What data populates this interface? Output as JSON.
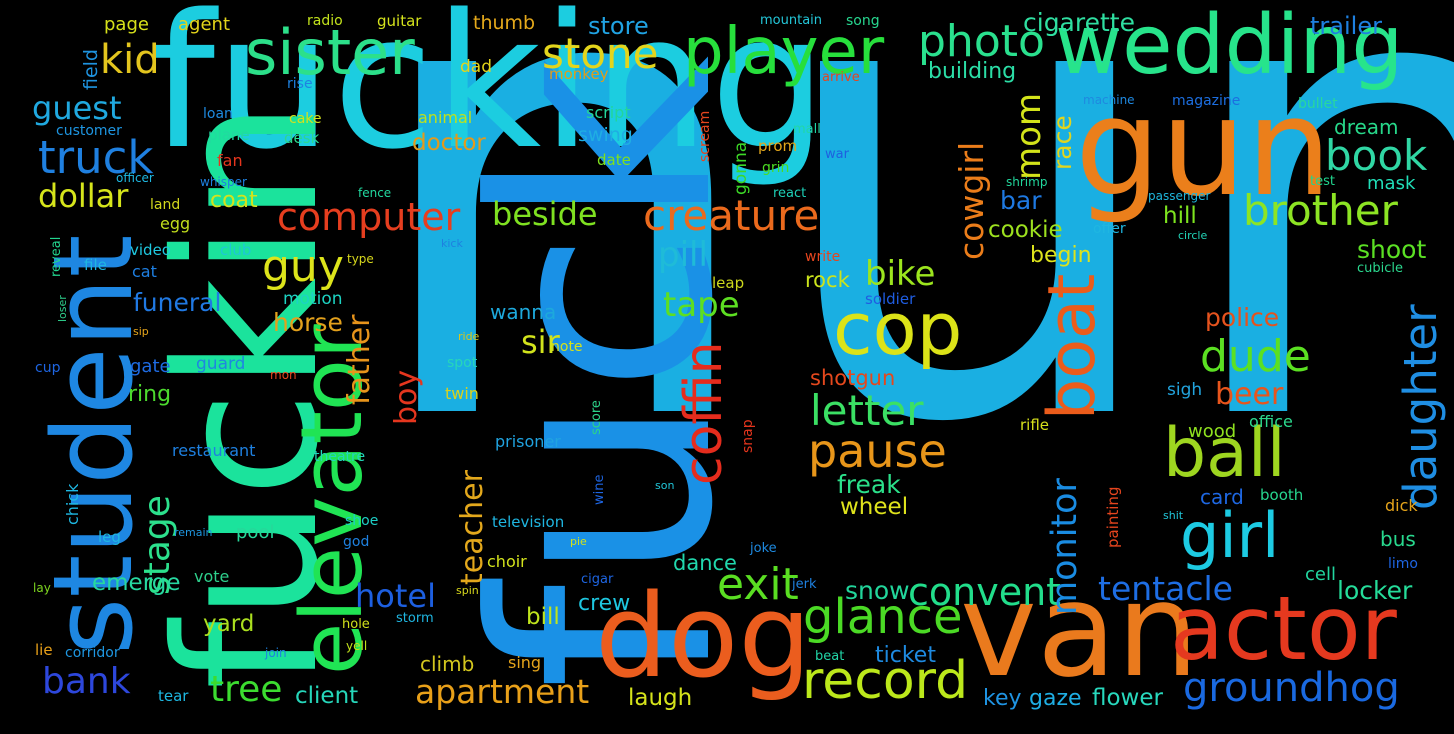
{
  "background": "#000000",
  "words": [
    {
      "text": "nun",
      "color": "#1AAFE2"
    },
    {
      "text": "fucking",
      "color": "#1CCDE0"
    },
    {
      "text": "fuck",
      "color": "#1A91E6"
    },
    {
      "text": "fuckin",
      "color": "#1BE39C"
    },
    {
      "text": "van",
      "color": "#EA7A1D"
    },
    {
      "text": "dog",
      "color": "#EB5D1E"
    },
    {
      "text": "gun",
      "color": "#EB7F1B"
    },
    {
      "text": "wedding",
      "color": "#27E48B"
    },
    {
      "text": "actor",
      "color": "#E5391F"
    },
    {
      "text": "student",
      "color": "#1E87E2"
    },
    {
      "text": "elevator",
      "color": "#20E454"
    },
    {
      "text": "sister",
      "color": "#2CE08A"
    },
    {
      "text": "player",
      "color": "#27DF3C"
    },
    {
      "text": "cop",
      "color": "#DCE318"
    },
    {
      "text": "record",
      "color": "#BCE81B"
    },
    {
      "text": "boat",
      "color": "#EB5C1B"
    },
    {
      "text": "coffin",
      "color": "#E52C1D"
    },
    {
      "text": "ball",
      "color": "#9ED620"
    },
    {
      "text": "girl",
      "color": "#1DCBE3"
    },
    {
      "text": "creature",
      "color": "#EB6A1D"
    },
    {
      "text": "computer",
      "color": "#E63E1F"
    },
    {
      "text": "photo",
      "color": "#2AE08E"
    },
    {
      "text": "brother",
      "color": "#8DE424"
    },
    {
      "text": "glance",
      "color": "#4BDA25"
    },
    {
      "text": "pause",
      "color": "#E8961A"
    },
    {
      "text": "letter",
      "color": "#3BE064"
    },
    {
      "text": "groundhog",
      "color": "#1A69E0"
    },
    {
      "text": "convent",
      "color": "#22DD8B"
    },
    {
      "text": "book",
      "color": "#30D7A4"
    },
    {
      "text": "exit",
      "color": "#5ADE22"
    },
    {
      "text": "dude",
      "color": "#5BE022"
    },
    {
      "text": "daughter",
      "color": "#1F8EE3"
    },
    {
      "text": "monitor",
      "color": "#1A8CE2"
    },
    {
      "text": "tentacle",
      "color": "#1E6EE4"
    },
    {
      "text": "truck",
      "color": "#1F80E0"
    },
    {
      "text": "apartment",
      "color": "#E8A019"
    },
    {
      "text": "tree",
      "color": "#3CDC30"
    },
    {
      "text": "guy",
      "color": "#DDE41B"
    },
    {
      "text": "stone",
      "color": "#E3D51C"
    },
    {
      "text": "hotel",
      "color": "#1D5FE0"
    },
    {
      "text": "bank",
      "color": "#2D47DC"
    },
    {
      "text": "kid",
      "color": "#E3C51E"
    },
    {
      "text": "stage",
      "color": "#2CE08C"
    },
    {
      "text": "mom",
      "color": "#D3E31A"
    },
    {
      "text": "dollar",
      "color": "#D6E51B"
    },
    {
      "text": "guest",
      "color": "#20A9E0"
    },
    {
      "text": "cowgirl",
      "color": "#EB7D1A"
    },
    {
      "text": "bike",
      "color": "#9CE51E"
    },
    {
      "text": "beside",
      "color": "#7FE121"
    },
    {
      "text": "pill",
      "color": "#1FBBD8"
    },
    {
      "text": "tape",
      "color": "#5DDF22"
    },
    {
      "text": "boy",
      "color": "#E5361E"
    },
    {
      "text": "father",
      "color": "#E8941B"
    },
    {
      "text": "teacher",
      "color": "#E3A81C"
    },
    {
      "text": "sir",
      "color": "#D2E31C"
    },
    {
      "text": "beer",
      "color": "#E8551C"
    },
    {
      "text": "locker",
      "color": "#25DC9A"
    },
    {
      "text": "freak",
      "color": "#2BE08A"
    },
    {
      "text": "funeral",
      "color": "#2079E3"
    },
    {
      "text": "horse",
      "color": "#E3A11C"
    },
    {
      "text": "race",
      "color": "#E2D51C"
    },
    {
      "text": "bar",
      "color": "#1E79E2"
    },
    {
      "text": "shoot",
      "color": "#5BE024"
    },
    {
      "text": "police",
      "color": "#E5531E"
    },
    {
      "text": "snow",
      "color": "#22D59B"
    },
    {
      "text": "cigarette",
      "color": "#2FDFA1"
    },
    {
      "text": "wheel",
      "color": "#DFE31C"
    },
    {
      "text": "emerge",
      "color": "#27D8A0"
    },
    {
      "text": "client",
      "color": "#26D6BA"
    },
    {
      "text": "dance",
      "color": "#21D8AE"
    },
    {
      "text": "bill",
      "color": "#BFE41D"
    },
    {
      "text": "yard",
      "color": "#ABDF1F"
    },
    {
      "text": "cookie",
      "color": "#9DE11F"
    },
    {
      "text": "hill",
      "color": "#7EE51F"
    },
    {
      "text": "ticket",
      "color": "#1E8AE0"
    },
    {
      "text": "crew",
      "color": "#1EC7E0"
    },
    {
      "text": "laugh",
      "color": "#D5E31B"
    },
    {
      "text": "flower",
      "color": "#28D9BE"
    },
    {
      "text": "gaze",
      "color": "#1FAEE3"
    },
    {
      "text": "key",
      "color": "#1F94E3"
    },
    {
      "text": "doctor",
      "color": "#E39A1C"
    },
    {
      "text": "building",
      "color": "#2BDDA6"
    },
    {
      "text": "store",
      "color": "#20A3E3"
    },
    {
      "text": "trailer",
      "color": "#1E80E0"
    },
    {
      "text": "coat",
      "color": "#D2E31C"
    },
    {
      "text": "shotgun",
      "color": "#E5481D"
    },
    {
      "text": "climb",
      "color": "#D3C61E"
    },
    {
      "text": "wanna",
      "color": "#1DA9DC"
    },
    {
      "text": "begin",
      "color": "#DDE31C"
    },
    {
      "text": "rock",
      "color": "#CBE31C"
    },
    {
      "text": "card",
      "color": "#1E67E2"
    },
    {
      "text": "bus",
      "color": "#28D98E"
    },
    {
      "text": "ring",
      "color": "#4CDA2E"
    },
    {
      "text": "pool",
      "color": "#26D89A"
    },
    {
      "text": "motion",
      "color": "#1DD3C2"
    },
    {
      "text": "cell",
      "color": "#22D6A0"
    },
    {
      "text": "mask",
      "color": "#21DEB8"
    },
    {
      "text": "dream",
      "color": "#27D88A"
    },
    {
      "text": "swing",
      "color": "#1FAEE3"
    },
    {
      "text": "wood",
      "color": "#8FE11F"
    },
    {
      "text": "sigh",
      "color": "#22A4DE"
    },
    {
      "text": "gate",
      "color": "#1E6BE2"
    },
    {
      "text": "guard",
      "color": "#1F86E0"
    },
    {
      "text": "field",
      "color": "#1E93DF"
    },
    {
      "text": "page",
      "color": "#D6E11A"
    },
    {
      "text": "agent",
      "color": "#E4D51A"
    },
    {
      "text": "thumb",
      "color": "#E5A91B"
    },
    {
      "text": "dad",
      "color": "#E3D31A"
    },
    {
      "text": "monkey",
      "color": "#DF9E1B"
    },
    {
      "text": "script",
      "color": "#22D59B"
    },
    {
      "text": "animal",
      "color": "#BFE11B"
    },
    {
      "text": "date",
      "color": "#7FE11E"
    },
    {
      "text": "gonna",
      "color": "#3CD827"
    },
    {
      "text": "scream",
      "color": "#E5451E"
    },
    {
      "text": "prom",
      "color": "#E3A71B"
    },
    {
      "text": "grin",
      "color": "#4BDB22"
    },
    {
      "text": "egg",
      "color": "#C2DF1C"
    },
    {
      "text": "cat",
      "color": "#1E7FE2"
    },
    {
      "text": "club",
      "color": "#1EC7D6"
    },
    {
      "text": "land",
      "color": "#D2D81C"
    },
    {
      "text": "video",
      "color": "#1FC9E0"
    },
    {
      "text": "file",
      "color": "#1FB6E1"
    },
    {
      "text": "fan",
      "color": "#E5351D"
    },
    {
      "text": "desk",
      "color": "#2CD98E"
    },
    {
      "text": "cake",
      "color": "#D3E11C"
    },
    {
      "text": "loan",
      "color": "#1E8AE0"
    },
    {
      "text": "plane",
      "color": "#22D9A0"
    },
    {
      "text": "customer",
      "color": "#1E96E2"
    },
    {
      "text": "rise",
      "color": "#1F82E2"
    },
    {
      "text": "radio",
      "color": "#C2E21C"
    },
    {
      "text": "guitar",
      "color": "#D5E31C"
    },
    {
      "text": "mountain",
      "color": "#24C7D9"
    },
    {
      "text": "song",
      "color": "#27D68F"
    },
    {
      "text": "machine",
      "color": "#1F89E0"
    },
    {
      "text": "magazine",
      "color": "#1C6EE0"
    },
    {
      "text": "bullet",
      "color": "#28D79E"
    },
    {
      "text": "arrive",
      "color": "#E5451E"
    },
    {
      "text": "mall",
      "color": "#22D6A8"
    },
    {
      "text": "war",
      "color": "#1E60E0"
    },
    {
      "text": "react",
      "color": "#1DCFB6"
    },
    {
      "text": "shrimp",
      "color": "#21D69C"
    },
    {
      "text": "passenger",
      "color": "#1EB6DC"
    },
    {
      "text": "test",
      "color": "#21D58E"
    },
    {
      "text": "circle",
      "color": "#22D5B8"
    },
    {
      "text": "offer",
      "color": "#1FB6E1"
    },
    {
      "text": "cubicle",
      "color": "#2BD78E"
    },
    {
      "text": "officer",
      "color": "#1EB8E2"
    },
    {
      "text": "whisper",
      "color": "#1E81E0"
    },
    {
      "text": "fence",
      "color": "#22D9A0"
    },
    {
      "text": "kick",
      "color": "#1E80E0"
    },
    {
      "text": "reveal",
      "color": "#22D58E"
    },
    {
      "text": "loser",
      "color": "#2ECF8C"
    },
    {
      "text": "sip",
      "color": "#E5A41B"
    },
    {
      "text": "cup",
      "color": "#1E65E2"
    },
    {
      "text": "type",
      "color": "#D6D71C"
    },
    {
      "text": "write",
      "color": "#E5451E"
    },
    {
      "text": "leap",
      "color": "#CDD91C"
    },
    {
      "text": "soldier",
      "color": "#1F5DE2"
    },
    {
      "text": "ride",
      "color": "#D9C71B"
    },
    {
      "text": "note",
      "color": "#D4E11C"
    },
    {
      "text": "spot",
      "color": "#26D6BA"
    },
    {
      "text": "twin",
      "color": "#D9D11C"
    },
    {
      "text": "mon",
      "color": "#E5451E"
    },
    {
      "text": "score",
      "color": "#2CD489"
    },
    {
      "text": "prisoner",
      "color": "#20A3E0"
    },
    {
      "text": "snap",
      "color": "#E5351D"
    },
    {
      "text": "restaurant",
      "color": "#1E80E0"
    },
    {
      "text": "theatre",
      "color": "#22D6BA"
    },
    {
      "text": "chick",
      "color": "#1EB8E2"
    },
    {
      "text": "rifle",
      "color": "#D6E11C"
    },
    {
      "text": "painting",
      "color": "#E5451E"
    },
    {
      "text": "office",
      "color": "#2CD98E"
    },
    {
      "text": "booth",
      "color": "#27D68F"
    },
    {
      "text": "dick",
      "color": "#E5A41B"
    },
    {
      "text": "son",
      "color": "#21C6D9"
    },
    {
      "text": "wine",
      "color": "#1E65E2"
    },
    {
      "text": "shit",
      "color": "#21C6D9"
    },
    {
      "text": "television",
      "color": "#1FB6E1"
    },
    {
      "text": "remain",
      "color": "#1E97E2"
    },
    {
      "text": "shoe",
      "color": "#1DCFC6"
    },
    {
      "text": "god",
      "color": "#1E81E0"
    },
    {
      "text": "pie",
      "color": "#D2E11C"
    },
    {
      "text": "joke",
      "color": "#1E8AE0"
    },
    {
      "text": "choir",
      "color": "#D3E31C"
    },
    {
      "text": "leg",
      "color": "#1EB8E2"
    },
    {
      "text": "vote",
      "color": "#2ECF8C"
    },
    {
      "text": "cigar",
      "color": "#1E65E2"
    },
    {
      "text": "jerk",
      "color": "#1E81E0"
    },
    {
      "text": "limo",
      "color": "#1E65E2"
    },
    {
      "text": "lay",
      "color": "#7ED61F"
    },
    {
      "text": "spin",
      "color": "#D6D71C"
    },
    {
      "text": "hole",
      "color": "#D2E11C"
    },
    {
      "text": "storm",
      "color": "#1FB6E1"
    },
    {
      "text": "lie",
      "color": "#E8A019"
    },
    {
      "text": "corridor",
      "color": "#1E97E2"
    },
    {
      "text": "join",
      "color": "#1E81E0"
    },
    {
      "text": "yell",
      "color": "#C2E21C"
    },
    {
      "text": "sing",
      "color": "#E5A41B"
    },
    {
      "text": "beat",
      "color": "#22D6A8"
    },
    {
      "text": "tear",
      "color": "#1EB8E2"
    }
  ]
}
